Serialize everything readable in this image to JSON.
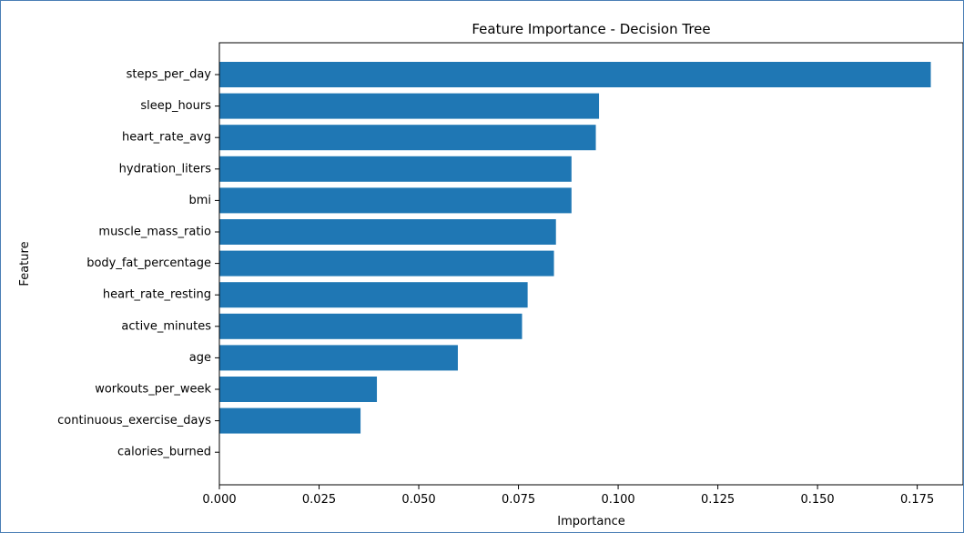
{
  "colors": {
    "bar": "#1f77b4",
    "frame_border": "#4a7fb5",
    "axis": "#000000"
  },
  "chart_data": {
    "type": "bar",
    "orientation": "horizontal",
    "title": "Feature Importance - Decision Tree",
    "xlabel": "Importance",
    "ylabel": "Feature",
    "xlim": [
      0,
      0.1865
    ],
    "grid": false,
    "categories": [
      "steps_per_day",
      "sleep_hours",
      "heart_rate_avg",
      "hydration_liters",
      "bmi",
      "muscle_mass_ratio",
      "body_fat_percentage",
      "heart_rate_resting",
      "active_minutes",
      "age",
      "workouts_per_week",
      "continuous_exercise_days",
      "calories_burned"
    ],
    "values": [
      0.1784,
      0.0952,
      0.0944,
      0.0883,
      0.0883,
      0.0844,
      0.0839,
      0.0773,
      0.0759,
      0.0598,
      0.0395,
      0.0354,
      0.0
    ],
    "x_ticks": [
      0.0,
      0.025,
      0.05,
      0.075,
      0.1,
      0.125,
      0.15,
      0.175
    ],
    "x_tick_labels": [
      "0.000",
      "0.025",
      "0.050",
      "0.075",
      "0.100",
      "0.125",
      "0.150",
      "0.175"
    ]
  }
}
